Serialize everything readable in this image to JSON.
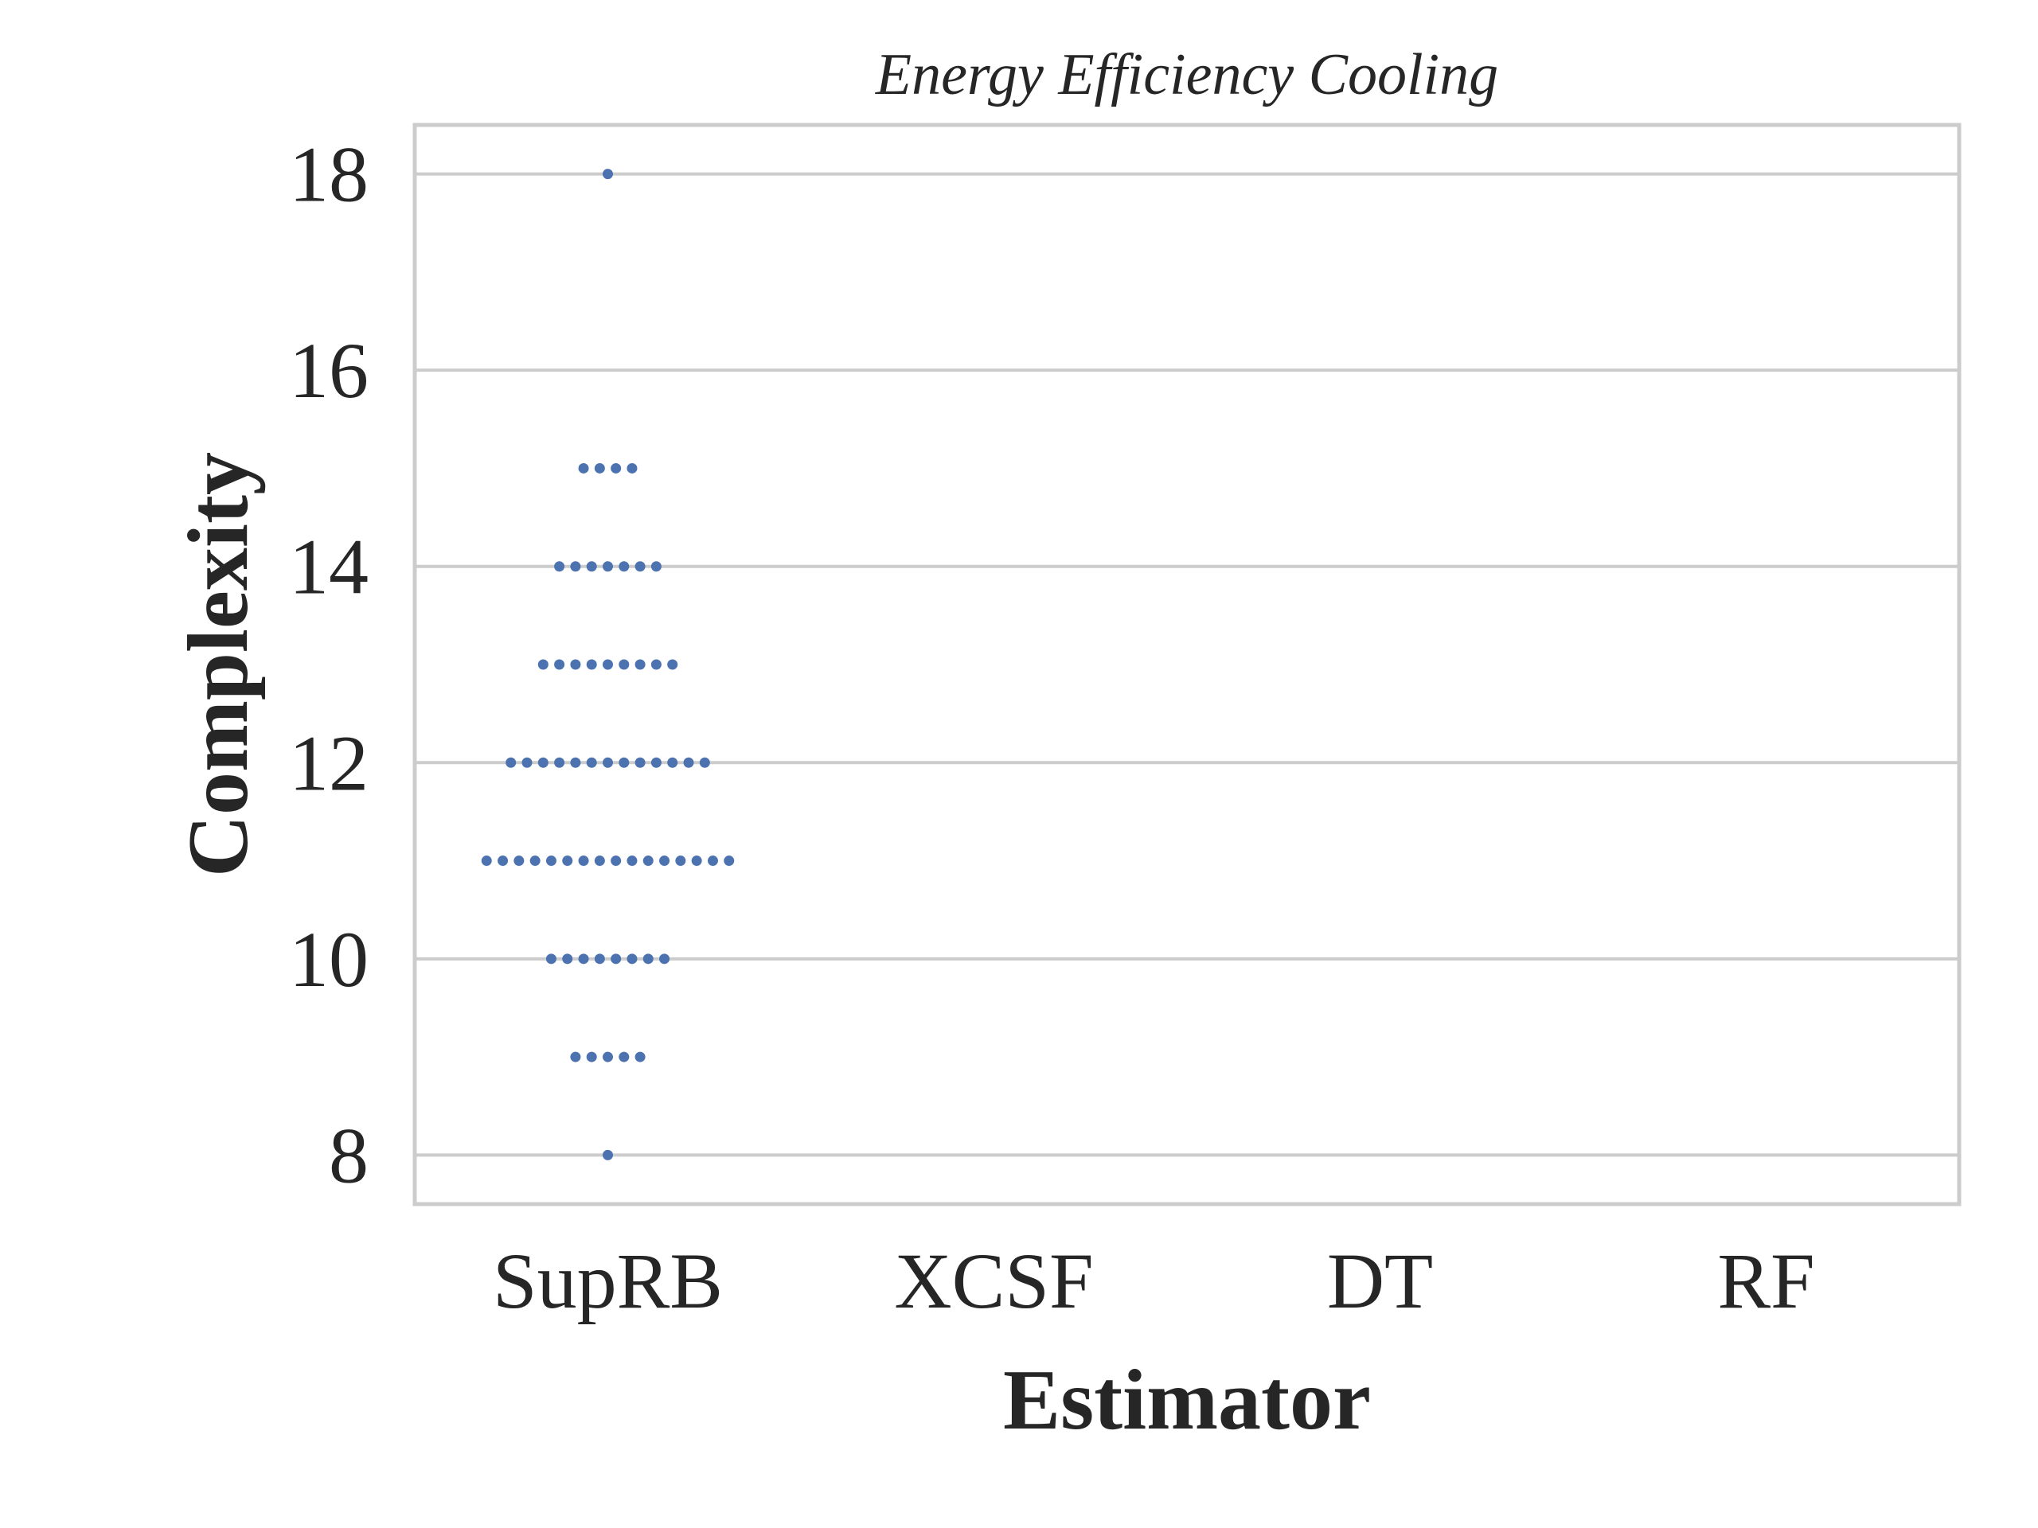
{
  "chart_data": {
    "type": "scatter",
    "subtype": "swarm",
    "title": "Energy Efficiency Cooling",
    "xlabel": "Estimator",
    "ylabel": "Complexity",
    "categories": [
      "SupRB",
      "XCSF",
      "DT",
      "RF"
    ],
    "yticks": [
      8,
      10,
      12,
      14,
      16,
      18
    ],
    "ylim": [
      7.5,
      18.5
    ],
    "grid": "horizontal",
    "series": [
      {
        "category": "SupRB",
        "points": [
          {
            "y": 18,
            "count": 1
          },
          {
            "y": 15,
            "count": 4
          },
          {
            "y": 14,
            "count": 7
          },
          {
            "y": 13,
            "count": 9
          },
          {
            "y": 12,
            "count": 13
          },
          {
            "y": 11,
            "count": 16
          },
          {
            "y": 10,
            "count": 8
          },
          {
            "y": 9,
            "count": 5
          },
          {
            "y": 8,
            "count": 1
          }
        ]
      }
    ],
    "colors": {
      "points": "#4c72b0",
      "grid": "#cccccc",
      "frame": "#cccccc",
      "text": "#262626"
    }
  }
}
